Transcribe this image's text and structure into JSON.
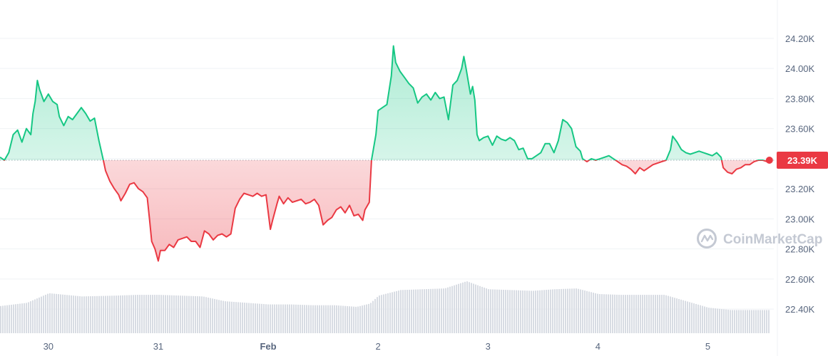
{
  "chart_data": {
    "type": "line",
    "y_ticks": [
      "24.20K",
      "24.00K",
      "23.80K",
      "23.60K",
      "23.40K",
      "23.20K",
      "23.00K",
      "22.80K",
      "22.60K",
      "22.40K"
    ],
    "y_tick_values": [
      24200,
      24000,
      23800,
      23600,
      23400,
      23200,
      23000,
      22800,
      22600,
      22400
    ],
    "ylim": [
      22230,
      24370
    ],
    "x_ticks": [
      {
        "label": "30",
        "t": 0.0,
        "bold": false
      },
      {
        "label": "31",
        "t": 1.0,
        "bold": false
      },
      {
        "label": "Feb",
        "t": 2.0,
        "bold": true
      },
      {
        "label": "2",
        "t": 3.0,
        "bold": false
      },
      {
        "label": "3",
        "t": 4.0,
        "bold": false
      },
      {
        "label": "4",
        "t": 5.0,
        "bold": false
      },
      {
        "label": "5",
        "t": 6.0,
        "bold": false
      }
    ],
    "xlim": [
      -0.44,
      6.6
    ],
    "baseline": 23390,
    "current_price_label": "23.39K",
    "colors": {
      "up": "#16c784",
      "down": "#ea3943",
      "volume": "#d8dce3",
      "grid": "#eff2f5",
      "baseline": "#aab0bb"
    },
    "series": [
      {
        "values": [
          [
            -0.44,
            23410
          ],
          [
            -0.4,
            23390
          ],
          [
            -0.36,
            23440
          ],
          [
            -0.32,
            23560
          ],
          [
            -0.28,
            23590
          ],
          [
            -0.24,
            23510
          ],
          [
            -0.2,
            23600
          ],
          [
            -0.16,
            23560
          ],
          [
            -0.14,
            23700
          ],
          [
            -0.12,
            23780
          ],
          [
            -0.1,
            23920
          ],
          [
            -0.08,
            23860
          ],
          [
            -0.04,
            23780
          ],
          [
            0.0,
            23830
          ],
          [
            0.04,
            23780
          ],
          [
            0.08,
            23760
          ],
          [
            0.1,
            23680
          ],
          [
            0.14,
            23620
          ],
          [
            0.18,
            23680
          ],
          [
            0.22,
            23660
          ],
          [
            0.26,
            23700
          ],
          [
            0.3,
            23740
          ],
          [
            0.34,
            23700
          ],
          [
            0.38,
            23650
          ],
          [
            0.42,
            23670
          ],
          [
            0.46,
            23520
          ],
          [
            0.5,
            23390
          ],
          [
            0.52,
            23320
          ],
          [
            0.56,
            23250
          ],
          [
            0.6,
            23200
          ],
          [
            0.64,
            23160
          ],
          [
            0.66,
            23120
          ],
          [
            0.7,
            23170
          ],
          [
            0.74,
            23230
          ],
          [
            0.78,
            23240
          ],
          [
            0.82,
            23200
          ],
          [
            0.86,
            23180
          ],
          [
            0.9,
            23140
          ],
          [
            0.92,
            23000
          ],
          [
            0.94,
            22850
          ],
          [
            0.97,
            22800
          ],
          [
            1.0,
            22720
          ],
          [
            1.02,
            22790
          ],
          [
            1.06,
            22790
          ],
          [
            1.1,
            22830
          ],
          [
            1.14,
            22810
          ],
          [
            1.18,
            22860
          ],
          [
            1.22,
            22870
          ],
          [
            1.26,
            22880
          ],
          [
            1.3,
            22850
          ],
          [
            1.34,
            22850
          ],
          [
            1.38,
            22810
          ],
          [
            1.42,
            22920
          ],
          [
            1.46,
            22900
          ],
          [
            1.5,
            22860
          ],
          [
            1.54,
            22890
          ],
          [
            1.58,
            22900
          ],
          [
            1.62,
            22880
          ],
          [
            1.66,
            22900
          ],
          [
            1.7,
            23070
          ],
          [
            1.74,
            23130
          ],
          [
            1.78,
            23170
          ],
          [
            1.82,
            23160
          ],
          [
            1.86,
            23150
          ],
          [
            1.9,
            23170
          ],
          [
            1.94,
            23150
          ],
          [
            1.98,
            23160
          ],
          [
            2.02,
            22930
          ],
          [
            2.04,
            22990
          ],
          [
            2.08,
            23100
          ],
          [
            2.1,
            23150
          ],
          [
            2.14,
            23100
          ],
          [
            2.18,
            23140
          ],
          [
            2.22,
            23110
          ],
          [
            2.26,
            23120
          ],
          [
            2.3,
            23130
          ],
          [
            2.34,
            23100
          ],
          [
            2.38,
            23110
          ],
          [
            2.42,
            23130
          ],
          [
            2.46,
            23090
          ],
          [
            2.5,
            22960
          ],
          [
            2.54,
            22990
          ],
          [
            2.58,
            23010
          ],
          [
            2.62,
            23060
          ],
          [
            2.66,
            23080
          ],
          [
            2.7,
            23040
          ],
          [
            2.74,
            23090
          ],
          [
            2.78,
            23020
          ],
          [
            2.82,
            23030
          ],
          [
            2.86,
            22990
          ],
          [
            2.88,
            23060
          ],
          [
            2.92,
            23110
          ],
          [
            2.94,
            23390
          ],
          [
            2.98,
            23560
          ],
          [
            3.0,
            23720
          ],
          [
            3.04,
            23740
          ],
          [
            3.08,
            23760
          ],
          [
            3.12,
            23950
          ],
          [
            3.14,
            24150
          ],
          [
            3.16,
            24040
          ],
          [
            3.2,
            23980
          ],
          [
            3.24,
            23940
          ],
          [
            3.28,
            23900
          ],
          [
            3.32,
            23870
          ],
          [
            3.36,
            23770
          ],
          [
            3.4,
            23810
          ],
          [
            3.44,
            23830
          ],
          [
            3.48,
            23790
          ],
          [
            3.52,
            23840
          ],
          [
            3.56,
            23800
          ],
          [
            3.6,
            23810
          ],
          [
            3.64,
            23660
          ],
          [
            3.68,
            23890
          ],
          [
            3.72,
            23920
          ],
          [
            3.76,
            24000
          ],
          [
            3.78,
            24080
          ],
          [
            3.8,
            24000
          ],
          [
            3.84,
            23830
          ],
          [
            3.86,
            23880
          ],
          [
            3.88,
            23790
          ],
          [
            3.9,
            23560
          ],
          [
            3.92,
            23520
          ],
          [
            3.96,
            23540
          ],
          [
            4.0,
            23550
          ],
          [
            4.04,
            23490
          ],
          [
            4.08,
            23550
          ],
          [
            4.12,
            23530
          ],
          [
            4.16,
            23520
          ],
          [
            4.2,
            23540
          ],
          [
            4.24,
            23520
          ],
          [
            4.28,
            23460
          ],
          [
            4.32,
            23470
          ],
          [
            4.36,
            23400
          ],
          [
            4.4,
            23400
          ],
          [
            4.44,
            23420
          ],
          [
            4.48,
            23440
          ],
          [
            4.52,
            23500
          ],
          [
            4.56,
            23500
          ],
          [
            4.6,
            23440
          ],
          [
            4.64,
            23520
          ],
          [
            4.68,
            23660
          ],
          [
            4.72,
            23640
          ],
          [
            4.76,
            23600
          ],
          [
            4.8,
            23480
          ],
          [
            4.84,
            23450
          ],
          [
            4.86,
            23400
          ],
          [
            4.9,
            23380
          ],
          [
            4.94,
            23400
          ],
          [
            4.98,
            23390
          ],
          [
            5.02,
            23400
          ],
          [
            5.06,
            23410
          ],
          [
            5.1,
            23420
          ],
          [
            5.14,
            23400
          ],
          [
            5.18,
            23380
          ],
          [
            5.22,
            23360
          ],
          [
            5.26,
            23350
          ],
          [
            5.3,
            23330
          ],
          [
            5.34,
            23300
          ],
          [
            5.38,
            23340
          ],
          [
            5.42,
            23320
          ],
          [
            5.46,
            23340
          ],
          [
            5.5,
            23360
          ],
          [
            5.54,
            23370
          ],
          [
            5.58,
            23380
          ],
          [
            5.62,
            23390
          ],
          [
            5.66,
            23460
          ],
          [
            5.68,
            23550
          ],
          [
            5.72,
            23510
          ],
          [
            5.76,
            23460
          ],
          [
            5.8,
            23440
          ],
          [
            5.84,
            23430
          ],
          [
            5.88,
            23440
          ],
          [
            5.92,
            23450
          ],
          [
            5.96,
            23440
          ],
          [
            6.0,
            23430
          ],
          [
            6.04,
            23420
          ],
          [
            6.08,
            23440
          ],
          [
            6.12,
            23410
          ],
          [
            6.14,
            23340
          ],
          [
            6.18,
            23310
          ],
          [
            6.22,
            23300
          ],
          [
            6.26,
            23330
          ],
          [
            6.3,
            23340
          ],
          [
            6.34,
            23360
          ],
          [
            6.38,
            23360
          ],
          [
            6.42,
            23380
          ],
          [
            6.46,
            23390
          ],
          [
            6.5,
            23390
          ],
          [
            6.54,
            23380
          ],
          [
            6.56,
            23390
          ]
        ]
      }
    ],
    "volume_profile": [
      [
        -0.44,
        0.34
      ],
      [
        -0.2,
        0.38
      ],
      [
        0.0,
        0.5
      ],
      [
        0.3,
        0.46
      ],
      [
        0.6,
        0.47
      ],
      [
        0.8,
        0.48
      ],
      [
        1.0,
        0.48
      ],
      [
        1.2,
        0.47
      ],
      [
        1.4,
        0.46
      ],
      [
        1.6,
        0.4
      ],
      [
        1.8,
        0.38
      ],
      [
        2.0,
        0.36
      ],
      [
        2.2,
        0.36
      ],
      [
        2.4,
        0.35
      ],
      [
        2.6,
        0.35
      ],
      [
        2.8,
        0.33
      ],
      [
        2.92,
        0.37
      ],
      [
        3.0,
        0.47
      ],
      [
        3.2,
        0.54
      ],
      [
        3.4,
        0.55
      ],
      [
        3.6,
        0.56
      ],
      [
        3.8,
        0.65
      ],
      [
        4.0,
        0.55
      ],
      [
        4.2,
        0.54
      ],
      [
        4.4,
        0.53
      ],
      [
        4.6,
        0.55
      ],
      [
        4.8,
        0.56
      ],
      [
        5.0,
        0.49
      ],
      [
        5.2,
        0.48
      ],
      [
        5.4,
        0.48
      ],
      [
        5.6,
        0.48
      ],
      [
        5.8,
        0.4
      ],
      [
        6.0,
        0.32
      ],
      [
        6.2,
        0.29
      ],
      [
        6.56,
        0.29
      ]
    ],
    "watermark": "CoinMarketCap"
  }
}
